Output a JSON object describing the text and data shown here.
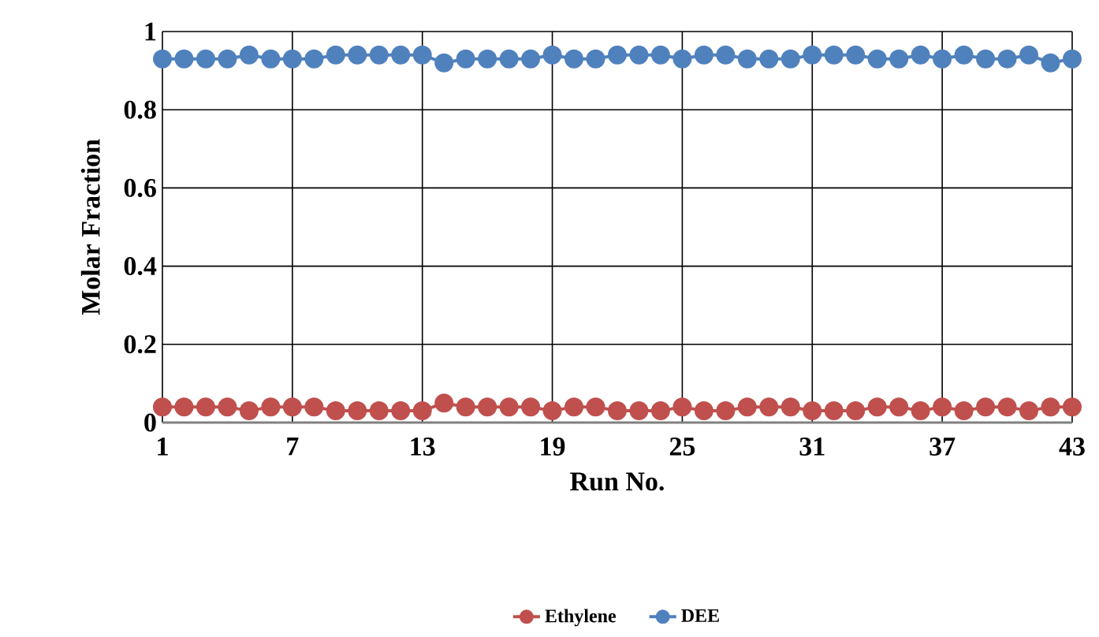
{
  "chart_data": {
    "type": "line",
    "xlabel": "Run No.",
    "ylabel": "Molar Fraction",
    "x": [
      1,
      2,
      3,
      4,
      5,
      6,
      7,
      8,
      9,
      10,
      11,
      12,
      13,
      14,
      15,
      16,
      17,
      18,
      19,
      20,
      21,
      22,
      23,
      24,
      25,
      26,
      27,
      28,
      29,
      30,
      31,
      32,
      33,
      34,
      35,
      36,
      37,
      38,
      39,
      40,
      41,
      42,
      43
    ],
    "series": [
      {
        "name": "Ethylene",
        "color": "#c0504d",
        "values": [
          0.04,
          0.04,
          0.04,
          0.04,
          0.03,
          0.04,
          0.04,
          0.04,
          0.03,
          0.03,
          0.03,
          0.03,
          0.03,
          0.05,
          0.04,
          0.04,
          0.04,
          0.04,
          0.03,
          0.04,
          0.04,
          0.03,
          0.03,
          0.03,
          0.04,
          0.03,
          0.03,
          0.04,
          0.04,
          0.04,
          0.03,
          0.03,
          0.03,
          0.04,
          0.04,
          0.03,
          0.04,
          0.03,
          0.04,
          0.04,
          0.03,
          0.04,
          0.04
        ]
      },
      {
        "name": "DEE",
        "color": "#4f81bd",
        "values": [
          0.93,
          0.93,
          0.93,
          0.93,
          0.94,
          0.93,
          0.93,
          0.93,
          0.94,
          0.94,
          0.94,
          0.94,
          0.94,
          0.92,
          0.93,
          0.93,
          0.93,
          0.93,
          0.94,
          0.93,
          0.93,
          0.94,
          0.94,
          0.94,
          0.93,
          0.94,
          0.94,
          0.93,
          0.93,
          0.93,
          0.94,
          0.94,
          0.94,
          0.93,
          0.93,
          0.94,
          0.93,
          0.94,
          0.93,
          0.93,
          0.94,
          0.92,
          0.93
        ]
      }
    ],
    "xlim": [
      1,
      43
    ],
    "xticks": [
      1,
      7,
      13,
      19,
      25,
      31,
      37,
      43
    ],
    "ylim": [
      0,
      1
    ],
    "yticks": [
      0,
      0.2,
      0.4,
      0.6,
      0.8,
      1
    ],
    "grid": true,
    "legend": "bottom",
    "marker": "circle",
    "line_style": "solid"
  }
}
